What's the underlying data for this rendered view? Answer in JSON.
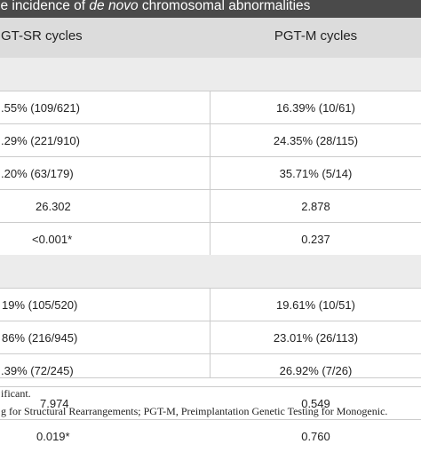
{
  "title": {
    "prefix": "ie incidence of ",
    "italic": "de novo",
    "suffix": " chromosomal abnormalities"
  },
  "header": {
    "col1": "GT-SR cycles",
    "col2": "PGT-M cycles"
  },
  "sections": [
    {
      "rows": [
        {
          "c1": ".55% (109/621)",
          "c2": "16.39% (10/61)"
        },
        {
          "c1": ".29% (221/910)",
          "c2": "24.35% (28/115)"
        },
        {
          "c1": ".20% (63/179)",
          "c2": "35.71% (5/14)"
        },
        {
          "c1": "26.302",
          "c2": "2.878"
        },
        {
          "c1": "<0.001*",
          "c2": "0.237"
        }
      ]
    },
    {
      "rows": [
        {
          "c1": "19% (105/520)",
          "c2": "19.61% (10/51)"
        },
        {
          "c1": "86% (216/945)",
          "c2": "23.01% (26/113)"
        },
        {
          "c1": ".39% (72/245)",
          "c2": "26.92% (7/26)"
        },
        {
          "c1": "7.974",
          "c2": "0.549"
        },
        {
          "c1": "0.019*",
          "c2": "0.760"
        }
      ]
    }
  ],
  "footnotes": [
    "ificant.",
    "g for Structural Rearrangements; PGT-M, Preimplantation Genetic Testing for Monogenic."
  ],
  "colors": {
    "title_bg": "#4a4a4a",
    "header_bg": "#dcdcdc",
    "section_bg": "#ececec"
  }
}
